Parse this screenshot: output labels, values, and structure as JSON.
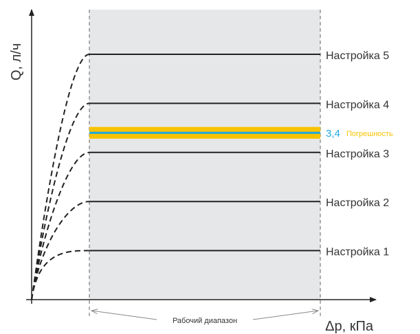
{
  "chart_data": {
    "type": "line",
    "xlabel": "Δp, кПа",
    "ylabel": "Q, л/ч",
    "xlim": [
      0,
      6
    ],
    "ylim": [
      0,
      6
    ],
    "working_range": {
      "from": 1,
      "to": 5,
      "label": "Рабочий диапазон",
      "fill": "#e6e7e9"
    },
    "series": [
      {
        "name": "Настройка 1",
        "y": 1.0
      },
      {
        "name": "Настройка 2",
        "y": 2.0
      },
      {
        "name": "Настройка 3",
        "y": 3.0
      },
      {
        "name": "Настройка 4",
        "y": 4.0
      },
      {
        "name": "Настройка 5",
        "y": 5.0
      }
    ],
    "highlight": {
      "value_label": "3,4",
      "value": 3.4,
      "tolerance_label": "Погрешность",
      "tolerance": 0.12,
      "line_color": "#1ea7e1",
      "band_color": "#f7c300"
    },
    "colors": {
      "axis": "#222222",
      "setting": "#222222",
      "boundary": "#666666",
      "label": "#333333"
    }
  }
}
